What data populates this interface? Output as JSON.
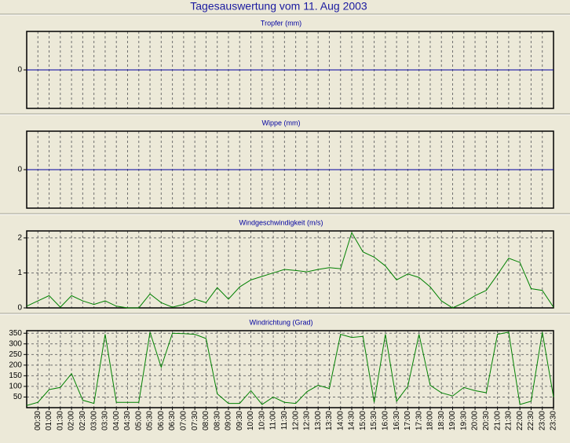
{
  "title": "Tagesauswertung vom 11. Aug 2003",
  "chart_data": [
    {
      "type": "line",
      "title": "Tropfer (mm)",
      "color": "#0000a0",
      "values": [
        0,
        0,
        0,
        0,
        0,
        0,
        0,
        0,
        0,
        0,
        0,
        0,
        0,
        0,
        0,
        0,
        0,
        0,
        0,
        0,
        0,
        0,
        0,
        0,
        0,
        0,
        0,
        0,
        0,
        0,
        0,
        0,
        0,
        0,
        0,
        0,
        0,
        0,
        0,
        0,
        0,
        0,
        0,
        0,
        0,
        0,
        0,
        0
      ],
      "ylim": [
        -1,
        1
      ],
      "yticks": [
        0
      ],
      "grid": true
    },
    {
      "type": "line",
      "title": "Wippe (mm)",
      "color": "#0000a0",
      "values": [
        0,
        0,
        0,
        0,
        0,
        0,
        0,
        0,
        0,
        0,
        0,
        0,
        0,
        0,
        0,
        0,
        0,
        0,
        0,
        0,
        0,
        0,
        0,
        0,
        0,
        0,
        0,
        0,
        0,
        0,
        0,
        0,
        0,
        0,
        0,
        0,
        0,
        0,
        0,
        0,
        0,
        0,
        0,
        0,
        0,
        0,
        0,
        0
      ],
      "ylim": [
        -1,
        1
      ],
      "yticks": [
        0
      ],
      "grid": true
    },
    {
      "type": "line",
      "title": "Windgeschwindigkeit (m/s)",
      "color": "#008000",
      "values": [
        0.05,
        0.2,
        0.35,
        0.02,
        0.35,
        0.2,
        0.1,
        0.2,
        0.05,
        0.0,
        0.0,
        0.4,
        0.15,
        0.02,
        0.1,
        0.25,
        0.15,
        0.58,
        0.25,
        0.6,
        0.8,
        0.9,
        1.0,
        1.1,
        1.07,
        1.03,
        1.1,
        1.15,
        1.12,
        2.15,
        1.6,
        1.45,
        1.2,
        0.8,
        0.97,
        0.87,
        0.6,
        0.2,
        0.0,
        0.15,
        0.35,
        0.5,
        0.95,
        1.42,
        1.3,
        0.55,
        0.5,
        0.02
      ],
      "ylim": [
        0,
        2.2
      ],
      "yticks": [
        0,
        1,
        2
      ],
      "grid": true
    },
    {
      "type": "line",
      "title": "Windrichtung (Grad)",
      "color": "#008000",
      "values": [
        10,
        25,
        85,
        95,
        160,
        35,
        20,
        345,
        25,
        25,
        25,
        355,
        190,
        350,
        348,
        345,
        325,
        65,
        20,
        20,
        80,
        15,
        50,
        25,
        20,
        75,
        105,
        90,
        345,
        330,
        335,
        25,
        345,
        30,
        100,
        345,
        105,
        70,
        55,
        95,
        80,
        70,
        345,
        355,
        15,
        30,
        355,
        50
      ],
      "categories": [
        null,
        "00:30",
        "01:00",
        "01:30",
        "02:00",
        "02:30",
        "03:00",
        "03:30",
        "04:00",
        "04:30",
        "05:00",
        "05:30",
        "06:00",
        "06:30",
        "07:00",
        "07:30",
        "08:00",
        "08:30",
        "09:00",
        "09:30",
        "10:00",
        "10:30",
        "11:00",
        "11:30",
        "12:00",
        "12:30",
        "13:00",
        "13:30",
        "14:00",
        "14:30",
        "15:00",
        "15:30",
        "16:00",
        "16:30",
        "17:00",
        "17:30",
        "18:00",
        "18:30",
        "19:00",
        "19:30",
        "20:00",
        "20:30",
        "21:00",
        "21:30",
        "22:00",
        "22:30",
        "23:00",
        "23:30"
      ],
      "ylim": [
        0,
        362
      ],
      "yticks": [
        50,
        100,
        150,
        200,
        250,
        300,
        350
      ],
      "grid": true
    }
  ]
}
